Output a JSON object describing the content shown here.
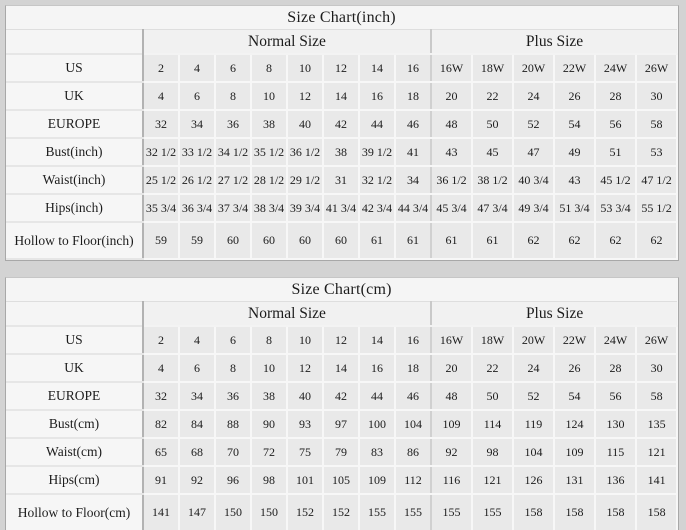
{
  "page": {
    "background_color": "#d3d3d3",
    "card_color": "#f6f6f6",
    "data_cell_color": "#e9e9e9",
    "text_color": "#1c1c1c"
  },
  "chart_data": [
    {
      "type": "table",
      "title": "Size Chart(inch)",
      "group_headers": [
        "Normal Size",
        "Plus Size"
      ],
      "rows": [
        {
          "label": "US",
          "normal": [
            "2",
            "4",
            "6",
            "8",
            "10",
            "12",
            "14",
            "16"
          ],
          "plus": [
            "16W",
            "18W",
            "20W",
            "22W",
            "24W",
            "26W"
          ]
        },
        {
          "label": "UK",
          "normal": [
            "4",
            "6",
            "8",
            "10",
            "12",
            "14",
            "16",
            "18"
          ],
          "plus": [
            "20",
            "22",
            "24",
            "26",
            "28",
            "30"
          ]
        },
        {
          "label": "EUROPE",
          "normal": [
            "32",
            "34",
            "36",
            "38",
            "40",
            "42",
            "44",
            "46"
          ],
          "plus": [
            "48",
            "50",
            "52",
            "54",
            "56",
            "58"
          ]
        },
        {
          "label": "Bust(inch)",
          "normal": [
            "32 1/2",
            "33 1/2",
            "34 1/2",
            "35 1/2",
            "36 1/2",
            "38",
            "39 1/2",
            "41"
          ],
          "plus": [
            "43",
            "45",
            "47",
            "49",
            "51",
            "53"
          ]
        },
        {
          "label": "Waist(inch)",
          "normal": [
            "25 1/2",
            "26 1/2",
            "27 1/2",
            "28 1/2",
            "29 1/2",
            "31",
            "32 1/2",
            "34"
          ],
          "plus": [
            "36 1/2",
            "38 1/2",
            "40 3/4",
            "43",
            "45 1/2",
            "47 1/2"
          ]
        },
        {
          "label": "Hips(inch)",
          "normal": [
            "35 3/4",
            "36 3/4",
            "37 3/4",
            "38 3/4",
            "39 3/4",
            "41 3/4",
            "42 3/4",
            "44 3/4"
          ],
          "plus": [
            "45 3/4",
            "47 3/4",
            "49 3/4",
            "51 3/4",
            "53 3/4",
            "55 1/2"
          ]
        },
        {
          "label": "Hollow to Floor(inch)",
          "normal": [
            "59",
            "59",
            "60",
            "60",
            "60",
            "60",
            "61",
            "61"
          ],
          "plus": [
            "61",
            "61",
            "62",
            "62",
            "62",
            "62"
          ]
        }
      ]
    },
    {
      "type": "table",
      "title": "Size Chart(cm)",
      "group_headers": [
        "Normal Size",
        "Plus Size"
      ],
      "rows": [
        {
          "label": "US",
          "normal": [
            "2",
            "4",
            "6",
            "8",
            "10",
            "12",
            "14",
            "16"
          ],
          "plus": [
            "16W",
            "18W",
            "20W",
            "22W",
            "24W",
            "26W"
          ]
        },
        {
          "label": "UK",
          "normal": [
            "4",
            "6",
            "8",
            "10",
            "12",
            "14",
            "16",
            "18"
          ],
          "plus": [
            "20",
            "22",
            "24",
            "26",
            "28",
            "30"
          ]
        },
        {
          "label": "EUROPE",
          "normal": [
            "32",
            "34",
            "36",
            "38",
            "40",
            "42",
            "44",
            "46"
          ],
          "plus": [
            "48",
            "50",
            "52",
            "54",
            "56",
            "58"
          ]
        },
        {
          "label": "Bust(cm)",
          "normal": [
            "82",
            "84",
            "88",
            "90",
            "93",
            "97",
            "100",
            "104"
          ],
          "plus": [
            "109",
            "114",
            "119",
            "124",
            "130",
            "135"
          ]
        },
        {
          "label": "Waist(cm)",
          "normal": [
            "65",
            "68",
            "70",
            "72",
            "75",
            "79",
            "83",
            "86"
          ],
          "plus": [
            "92",
            "98",
            "104",
            "109",
            "115",
            "121"
          ]
        },
        {
          "label": "Hips(cm)",
          "normal": [
            "91",
            "92",
            "96",
            "98",
            "101",
            "105",
            "109",
            "112"
          ],
          "plus": [
            "116",
            "121",
            "126",
            "131",
            "136",
            "141"
          ]
        },
        {
          "label": "Hollow to Floor(cm)",
          "normal": [
            "141",
            "147",
            "150",
            "150",
            "152",
            "152",
            "155",
            "155"
          ],
          "plus": [
            "155",
            "155",
            "158",
            "158",
            "158",
            "158"
          ]
        }
      ]
    }
  ]
}
